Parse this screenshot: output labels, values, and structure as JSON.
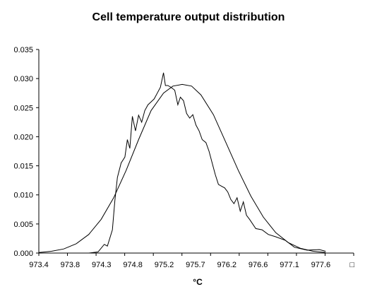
{
  "chart_data": {
    "type": "line",
    "title": "Cell temperature output distribution",
    "xlabel": "°C",
    "ylabel": "",
    "grid": false,
    "legend": "none",
    "ylim": [
      0,
      0.035
    ],
    "y_ticks": [
      "0.000",
      "0.005",
      "0.010",
      "0.015",
      "0.020",
      "0.025",
      "0.030",
      "0.035"
    ],
    "x_tick_labels": [
      "973.4",
      "973.8",
      "974.3",
      "974.8",
      "975.2",
      "975.7",
      "976.2",
      "976.6",
      "977.1",
      "977.6",
      "□"
    ],
    "x_range": [
      973.4,
      978.45
    ],
    "series": [
      {
        "x": [
          973.4,
          973.6,
          973.8,
          974.0,
          974.2,
          974.35,
          974.45,
          974.5,
          974.58,
          974.62,
          974.66,
          974.72,
          974.78,
          974.82,
          974.86,
          974.9,
          974.95,
          975.0,
          975.05,
          975.1,
          975.15,
          975.2,
          975.25,
          975.3,
          975.35,
          975.4,
          975.43,
          975.47,
          975.52,
          975.58,
          975.63,
          975.67,
          975.72,
          975.77,
          975.82,
          975.87,
          975.92,
          975.97,
          976.02,
          976.08,
          976.13,
          976.18,
          976.23,
          976.28,
          976.33,
          976.38,
          976.43,
          976.48,
          976.53,
          976.58,
          976.63,
          976.68,
          976.73,
          976.78,
          976.88,
          976.98,
          977.08,
          977.2,
          977.35,
          977.5,
          977.7,
          977.9,
          978.0
        ],
        "values": [
          0.0,
          0.0,
          0.0,
          0.0,
          0.0,
          0.0002,
          0.0015,
          0.0012,
          0.004,
          0.009,
          0.013,
          0.0155,
          0.0165,
          0.0195,
          0.018,
          0.0235,
          0.021,
          0.0237,
          0.0225,
          0.0245,
          0.0255,
          0.026,
          0.0265,
          0.0275,
          0.0285,
          0.031,
          0.0288,
          0.0288,
          0.0285,
          0.028,
          0.0255,
          0.0268,
          0.0262,
          0.024,
          0.0232,
          0.0238,
          0.022,
          0.021,
          0.0195,
          0.019,
          0.0175,
          0.0155,
          0.0135,
          0.0118,
          0.0115,
          0.0112,
          0.0105,
          0.0092,
          0.0085,
          0.0095,
          0.0072,
          0.0088,
          0.0065,
          0.0058,
          0.0042,
          0.004,
          0.0032,
          0.0028,
          0.0022,
          0.001,
          0.0005,
          0.0006,
          0.0003
        ]
      },
      {
        "x": [
          973.4,
          973.6,
          973.8,
          974.0,
          974.2,
          974.4,
          974.6,
          974.8,
          975.0,
          975.2,
          975.4,
          975.55,
          975.7,
          975.85,
          976.0,
          976.2,
          976.4,
          976.6,
          976.8,
          977.0,
          977.2,
          977.4,
          977.6,
          977.8,
          978.0
        ],
        "values": [
          0.0001,
          0.0003,
          0.0007,
          0.0016,
          0.0032,
          0.0058,
          0.0095,
          0.0142,
          0.0195,
          0.0245,
          0.0275,
          0.0287,
          0.029,
          0.0287,
          0.0272,
          0.0238,
          0.019,
          0.0142,
          0.0098,
          0.0062,
          0.0035,
          0.0018,
          0.0008,
          0.0003,
          0.0001
        ]
      }
    ]
  }
}
